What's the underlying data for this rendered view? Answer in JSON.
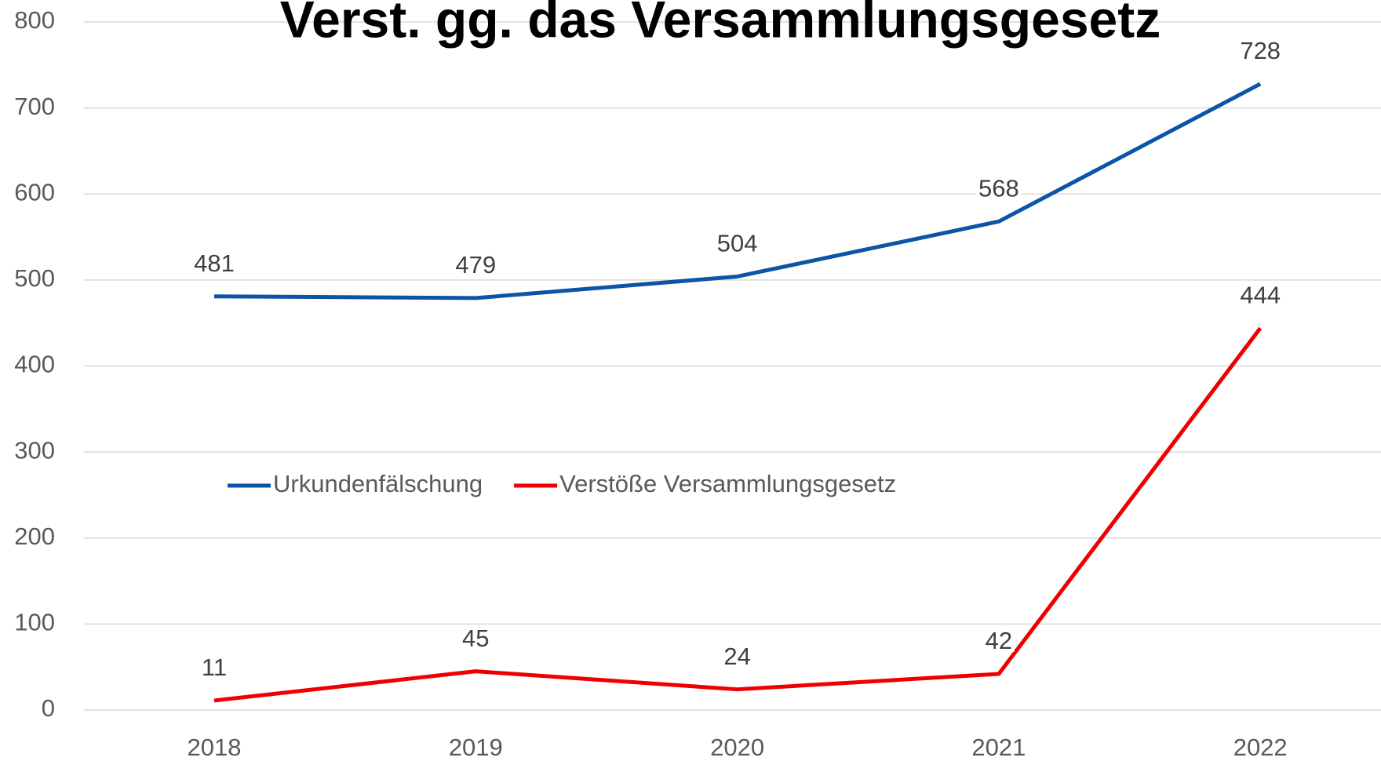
{
  "chart_data": {
    "type": "line",
    "title": "Verst. gg. das Versammlungsgesetz",
    "categories": [
      "2018",
      "2019",
      "2020",
      "2021",
      "2022"
    ],
    "series": [
      {
        "name": "Urkundenfälschung",
        "color": "#0a55a8",
        "values": [
          481,
          479,
          504,
          568,
          728
        ]
      },
      {
        "name": "Verstöße Versammlungsgesetz",
        "color": "#ee0000",
        "values": [
          11,
          45,
          24,
          42,
          444
        ]
      }
    ],
    "ylim": [
      0,
      800
    ],
    "yticks": [
      0,
      100,
      200,
      300,
      400,
      500,
      600,
      700,
      800
    ],
    "grid": true
  }
}
